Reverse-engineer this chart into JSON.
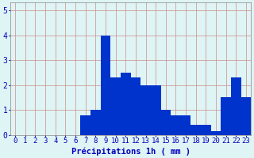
{
  "hours": [
    0,
    1,
    2,
    3,
    4,
    5,
    6,
    7,
    8,
    9,
    10,
    11,
    12,
    13,
    14,
    15,
    16,
    17,
    18,
    19,
    20,
    21,
    22,
    23
  ],
  "values": [
    0,
    0,
    0,
    0,
    0,
    0,
    0,
    0.8,
    1.0,
    4.0,
    2.3,
    2.5,
    2.3,
    2.0,
    2.0,
    1.0,
    0.8,
    0.8,
    0.4,
    0.4,
    0.15,
    1.5,
    2.3,
    1.5
  ],
  "bar_color": "#0033cc",
  "background_color": "#dff4f4",
  "grid_color": "#b0b0b0",
  "text_color": "#0000bb",
  "xlabel": "Précipitations 1h ( mm )",
  "ylim": [
    0,
    5.3
  ],
  "yticks": [
    0,
    1,
    2,
    3,
    4,
    5
  ],
  "xlabel_fontsize": 7.5,
  "tick_fontsize": 6.5
}
